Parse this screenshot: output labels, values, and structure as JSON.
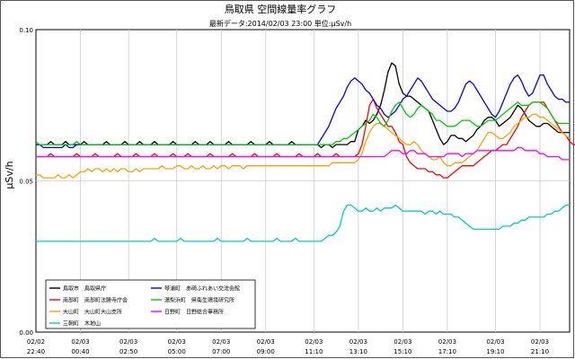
{
  "header": {
    "title": "鳥取県 空間線量率グラフ",
    "subtitle": "最新データ:2014/02/03 23:00  単位:μSv/h"
  },
  "chart_data": {
    "type": "line",
    "ylabel": "μSv/h",
    "ylim": [
      0.0,
      0.1
    ],
    "yticks": [
      "0.00",
      "0.05",
      "0.10"
    ],
    "grid": true,
    "legend_position": "bottom-left",
    "x_tick_labels": [
      [
        "02/02",
        "22:40"
      ],
      [
        "02/03",
        "00:40"
      ],
      [
        "02/03",
        "02:50"
      ],
      [
        "02/03",
        "05:00"
      ],
      [
        "02/03",
        "07:00"
      ],
      [
        "02/03",
        "09:00"
      ],
      [
        "02/03",
        "11:10"
      ],
      [
        "02/03",
        "13:10"
      ],
      [
        "02/03",
        "15:10"
      ],
      [
        "02/03",
        "17:10"
      ],
      [
        "02/03",
        "19:10"
      ],
      [
        "02/03",
        "21:10"
      ]
    ],
    "x_tick_positions": [
      0,
      12,
      25,
      38,
      50,
      62,
      75,
      87,
      99,
      111,
      124,
      136
    ],
    "x_count": 145,
    "series": [
      {
        "name": "鳥取市　鳥取県庁",
        "color": "#000000",
        "values": [
          0.062,
          0.062,
          0.062,
          0.062,
          0.063,
          0.062,
          0.062,
          0.062,
          0.063,
          0.062,
          0.062,
          0.062,
          0.062,
          0.063,
          0.062,
          0.062,
          0.062,
          0.062,
          0.062,
          0.063,
          0.062,
          0.062,
          0.062,
          0.062,
          0.063,
          0.062,
          0.062,
          0.062,
          0.063,
          0.062,
          0.062,
          0.062,
          0.063,
          0.062,
          0.062,
          0.062,
          0.062,
          0.063,
          0.062,
          0.062,
          0.062,
          0.062,
          0.062,
          0.063,
          0.062,
          0.062,
          0.062,
          0.063,
          0.062,
          0.062,
          0.062,
          0.062,
          0.063,
          0.062,
          0.062,
          0.062,
          0.062,
          0.062,
          0.063,
          0.062,
          0.062,
          0.062,
          0.062,
          0.063,
          0.062,
          0.062,
          0.062,
          0.062,
          0.062,
          0.063,
          0.062,
          0.062,
          0.062,
          0.062,
          0.062,
          0.062,
          0.062,
          0.061,
          0.062,
          0.062,
          0.061,
          0.062,
          0.062,
          0.062,
          0.062,
          0.063,
          0.063,
          0.067,
          0.068,
          0.07,
          0.069,
          0.07,
          0.072,
          0.075,
          0.08,
          0.086,
          0.089,
          0.088,
          0.082,
          0.079,
          0.078,
          0.078,
          0.077,
          0.076,
          0.075,
          0.074,
          0.073,
          0.07,
          0.067,
          0.064,
          0.062,
          0.063,
          0.065,
          0.065,
          0.064,
          0.064,
          0.063,
          0.064,
          0.065,
          0.067,
          0.068,
          0.07,
          0.071,
          0.071,
          0.07,
          0.068,
          0.069,
          0.07,
          0.071,
          0.073,
          0.075,
          0.074,
          0.072,
          0.07,
          0.069,
          0.068,
          0.068,
          0.069,
          0.069,
          0.068,
          0.067,
          0.066,
          0.066,
          0.066,
          0.066
        ]
      },
      {
        "name": "南部町　南部町法勝寺庁舎",
        "color": "#ff0000",
        "values": [
          0.058,
          0.058,
          0.058,
          0.058,
          0.059,
          0.058,
          0.058,
          0.058,
          0.058,
          0.058,
          0.058,
          0.059,
          0.058,
          0.058,
          0.058,
          0.058,
          0.059,
          0.058,
          0.058,
          0.058,
          0.058,
          0.058,
          0.059,
          0.058,
          0.058,
          0.058,
          0.058,
          0.059,
          0.058,
          0.058,
          0.058,
          0.058,
          0.059,
          0.058,
          0.058,
          0.058,
          0.058,
          0.059,
          0.058,
          0.058,
          0.058,
          0.059,
          0.058,
          0.058,
          0.058,
          0.058,
          0.058,
          0.059,
          0.058,
          0.058,
          0.058,
          0.058,
          0.058,
          0.059,
          0.058,
          0.058,
          0.058,
          0.058,
          0.058,
          0.059,
          0.058,
          0.058,
          0.058,
          0.058,
          0.058,
          0.059,
          0.058,
          0.058,
          0.058,
          0.058,
          0.058,
          0.059,
          0.058,
          0.058,
          0.058,
          0.058,
          0.059,
          0.058,
          0.058,
          0.058,
          0.058,
          0.059,
          0.058,
          0.058,
          0.058,
          0.058,
          0.058,
          0.059,
          0.062,
          0.068,
          0.075,
          0.077,
          0.074,
          0.072,
          0.07,
          0.068,
          0.068,
          0.066,
          0.063,
          0.062,
          0.058,
          0.056,
          0.055,
          0.054,
          0.054,
          0.054,
          0.053,
          0.053,
          0.052,
          0.052,
          0.051,
          0.051,
          0.052,
          0.053,
          0.054,
          0.055,
          0.055,
          0.055,
          0.055,
          0.056,
          0.057,
          0.058,
          0.059,
          0.06,
          0.06,
          0.061,
          0.062,
          0.062,
          0.064,
          0.066,
          0.068,
          0.071,
          0.073,
          0.075,
          0.076,
          0.076,
          0.076,
          0.076,
          0.074,
          0.072,
          0.07,
          0.068,
          0.066,
          0.065,
          0.063,
          0.062,
          0.062
        ]
      },
      {
        "name": "大山町　大山町大山支所",
        "color": "#ffa000",
        "values": [
          0.052,
          0.052,
          0.051,
          0.051,
          0.051,
          0.051,
          0.052,
          0.051,
          0.051,
          0.052,
          0.051,
          0.052,
          0.053,
          0.053,
          0.054,
          0.053,
          0.054,
          0.054,
          0.053,
          0.054,
          0.053,
          0.054,
          0.053,
          0.054,
          0.054,
          0.053,
          0.053,
          0.054,
          0.053,
          0.054,
          0.054,
          0.054,
          0.054,
          0.054,
          0.055,
          0.054,
          0.054,
          0.054,
          0.055,
          0.055,
          0.054,
          0.054,
          0.055,
          0.054,
          0.054,
          0.055,
          0.054,
          0.054,
          0.055,
          0.054,
          0.055,
          0.055,
          0.054,
          0.055,
          0.055,
          0.055,
          0.054,
          0.055,
          0.055,
          0.055,
          0.055,
          0.055,
          0.055,
          0.055,
          0.055,
          0.055,
          0.055,
          0.055,
          0.055,
          0.055,
          0.055,
          0.055,
          0.055,
          0.055,
          0.055,
          0.055,
          0.055,
          0.055,
          0.055,
          0.055,
          0.056,
          0.056,
          0.056,
          0.056,
          0.056,
          0.056,
          0.056,
          0.057,
          0.059,
          0.063,
          0.066,
          0.068,
          0.069,
          0.069,
          0.068,
          0.067,
          0.066,
          0.065,
          0.064,
          0.063,
          0.062,
          0.062,
          0.063,
          0.062,
          0.06,
          0.059,
          0.058,
          0.057,
          0.057,
          0.058,
          0.056,
          0.055,
          0.055,
          0.056,
          0.056,
          0.056,
          0.057,
          0.058,
          0.059,
          0.06,
          0.062,
          0.064,
          0.066,
          0.066,
          0.065,
          0.064,
          0.064,
          0.065,
          0.066,
          0.068,
          0.069,
          0.07,
          0.071,
          0.071,
          0.072,
          0.072,
          0.071,
          0.071,
          0.07,
          0.069,
          0.068,
          0.067,
          0.066,
          0.065,
          0.064
        ]
      },
      {
        "name": "三朝町　木地山",
        "color": "#00cccc",
        "values": [
          0.03,
          0.03,
          0.03,
          0.03,
          0.03,
          0.03,
          0.03,
          0.03,
          0.03,
          0.03,
          0.03,
          0.03,
          0.03,
          0.03,
          0.03,
          0.03,
          0.03,
          0.03,
          0.03,
          0.03,
          0.03,
          0.03,
          0.03,
          0.03,
          0.03,
          0.03,
          0.03,
          0.03,
          0.03,
          0.03,
          0.03,
          0.03,
          0.031,
          0.03,
          0.03,
          0.03,
          0.03,
          0.03,
          0.03,
          0.031,
          0.03,
          0.03,
          0.03,
          0.03,
          0.03,
          0.03,
          0.03,
          0.03,
          0.03,
          0.031,
          0.03,
          0.03,
          0.03,
          0.03,
          0.03,
          0.03,
          0.03,
          0.031,
          0.03,
          0.03,
          0.03,
          0.03,
          0.03,
          0.03,
          0.03,
          0.031,
          0.03,
          0.03,
          0.03,
          0.03,
          0.031,
          0.03,
          0.03,
          0.03,
          0.03,
          0.03,
          0.03,
          0.03,
          0.031,
          0.032,
          0.032,
          0.033,
          0.035,
          0.04,
          0.042,
          0.042,
          0.041,
          0.04,
          0.04,
          0.041,
          0.04,
          0.04,
          0.041,
          0.04,
          0.041,
          0.041,
          0.041,
          0.042,
          0.041,
          0.04,
          0.04,
          0.04,
          0.04,
          0.04,
          0.04,
          0.039,
          0.04,
          0.04,
          0.039,
          0.04,
          0.039,
          0.039,
          0.039,
          0.038,
          0.038,
          0.037,
          0.036,
          0.035,
          0.034,
          0.034,
          0.034,
          0.034,
          0.034,
          0.034,
          0.034,
          0.034,
          0.035,
          0.035,
          0.035,
          0.036,
          0.036,
          0.037,
          0.037,
          0.038,
          0.038,
          0.038,
          0.038,
          0.038,
          0.039,
          0.039,
          0.04,
          0.04,
          0.041,
          0.042,
          0.042
        ]
      },
      {
        "name": "琴浦町　赤碕ふれあい交流会館",
        "color": "#0000ff",
        "values": [
          0.062,
          0.062,
          0.061,
          0.061,
          0.061,
          0.061,
          0.061,
          0.061,
          0.062,
          0.061,
          0.061,
          0.062,
          0.062,
          0.062,
          0.062,
          0.062,
          0.062,
          0.062,
          0.062,
          0.062,
          0.062,
          0.062,
          0.062,
          0.062,
          0.062,
          0.062,
          0.062,
          0.062,
          0.062,
          0.062,
          0.062,
          0.062,
          0.062,
          0.062,
          0.062,
          0.062,
          0.062,
          0.062,
          0.062,
          0.062,
          0.062,
          0.062,
          0.062,
          0.062,
          0.062,
          0.062,
          0.062,
          0.062,
          0.062,
          0.062,
          0.062,
          0.062,
          0.062,
          0.062,
          0.062,
          0.062,
          0.062,
          0.062,
          0.062,
          0.062,
          0.062,
          0.062,
          0.062,
          0.062,
          0.062,
          0.062,
          0.062,
          0.062,
          0.062,
          0.062,
          0.062,
          0.062,
          0.062,
          0.062,
          0.062,
          0.062,
          0.062,
          0.064,
          0.066,
          0.068,
          0.071,
          0.074,
          0.076,
          0.078,
          0.081,
          0.083,
          0.084,
          0.083,
          0.082,
          0.08,
          0.079,
          0.077,
          0.075,
          0.074,
          0.072,
          0.071,
          0.072,
          0.073,
          0.075,
          0.077,
          0.078,
          0.08,
          0.082,
          0.084,
          0.083,
          0.081,
          0.079,
          0.077,
          0.076,
          0.075,
          0.074,
          0.073,
          0.073,
          0.074,
          0.076,
          0.079,
          0.082,
          0.083,
          0.082,
          0.08,
          0.078,
          0.076,
          0.074,
          0.072,
          0.071,
          0.073,
          0.076,
          0.079,
          0.082,
          0.084,
          0.085,
          0.083,
          0.08,
          0.078,
          0.079,
          0.082,
          0.085,
          0.085,
          0.082,
          0.08,
          0.078,
          0.077,
          0.077,
          0.076,
          0.076
        ]
      },
      {
        "name": "湯梨浜町　県衛生環境研究所",
        "color": "#00cc00",
        "values": [
          0.063,
          0.062,
          0.062,
          0.062,
          0.062,
          0.062,
          0.062,
          0.062,
          0.062,
          0.062,
          0.062,
          0.063,
          0.062,
          0.062,
          0.062,
          0.062,
          0.062,
          0.062,
          0.062,
          0.062,
          0.062,
          0.062,
          0.062,
          0.062,
          0.062,
          0.062,
          0.062,
          0.062,
          0.062,
          0.062,
          0.062,
          0.062,
          0.062,
          0.062,
          0.062,
          0.062,
          0.062,
          0.062,
          0.062,
          0.062,
          0.062,
          0.062,
          0.062,
          0.062,
          0.062,
          0.062,
          0.062,
          0.062,
          0.062,
          0.062,
          0.062,
          0.062,
          0.062,
          0.062,
          0.062,
          0.062,
          0.062,
          0.062,
          0.062,
          0.062,
          0.062,
          0.062,
          0.062,
          0.062,
          0.062,
          0.062,
          0.062,
          0.062,
          0.062,
          0.062,
          0.062,
          0.062,
          0.062,
          0.062,
          0.062,
          0.062,
          0.062,
          0.062,
          0.062,
          0.062,
          0.062,
          0.063,
          0.063,
          0.064,
          0.064,
          0.065,
          0.066,
          0.067,
          0.068,
          0.069,
          0.07,
          0.072,
          0.071,
          0.069,
          0.068,
          0.07,
          0.073,
          0.075,
          0.076,
          0.074,
          0.072,
          0.071,
          0.072,
          0.074,
          0.075,
          0.074,
          0.073,
          0.072,
          0.07,
          0.07,
          0.069,
          0.068,
          0.068,
          0.068,
          0.069,
          0.07,
          0.07,
          0.07,
          0.069,
          0.068,
          0.068,
          0.069,
          0.07,
          0.07,
          0.07,
          0.071,
          0.072,
          0.073,
          0.074,
          0.075,
          0.076,
          0.075,
          0.075,
          0.075,
          0.076,
          0.076,
          0.076,
          0.075,
          0.074,
          0.072,
          0.07,
          0.069,
          0.069,
          0.069,
          0.069
        ]
      },
      {
        "name": "日野町　日野総合事務所",
        "color": "#ff00ff",
        "values": [
          0.058,
          0.058,
          0.058,
          0.058,
          0.058,
          0.058,
          0.058,
          0.058,
          0.058,
          0.058,
          0.058,
          0.058,
          0.058,
          0.058,
          0.058,
          0.058,
          0.058,
          0.058,
          0.058,
          0.058,
          0.058,
          0.058,
          0.058,
          0.058,
          0.058,
          0.058,
          0.058,
          0.058,
          0.058,
          0.058,
          0.058,
          0.058,
          0.058,
          0.058,
          0.058,
          0.058,
          0.058,
          0.058,
          0.058,
          0.058,
          0.058,
          0.058,
          0.058,
          0.058,
          0.058,
          0.058,
          0.058,
          0.058,
          0.058,
          0.058,
          0.058,
          0.058,
          0.058,
          0.058,
          0.058,
          0.058,
          0.058,
          0.058,
          0.058,
          0.058,
          0.058,
          0.058,
          0.058,
          0.058,
          0.058,
          0.058,
          0.058,
          0.058,
          0.058,
          0.058,
          0.058,
          0.058,
          0.058,
          0.058,
          0.058,
          0.058,
          0.058,
          0.058,
          0.058,
          0.058,
          0.058,
          0.058,
          0.058,
          0.058,
          0.058,
          0.058,
          0.058,
          0.058,
          0.058,
          0.058,
          0.058,
          0.058,
          0.058,
          0.058,
          0.058,
          0.059,
          0.06,
          0.06,
          0.06,
          0.059,
          0.059,
          0.06,
          0.06,
          0.059,
          0.059,
          0.059,
          0.058,
          0.058,
          0.058,
          0.058,
          0.058,
          0.059,
          0.059,
          0.059,
          0.059,
          0.058,
          0.059,
          0.059,
          0.059,
          0.06,
          0.06,
          0.06,
          0.06,
          0.06,
          0.06,
          0.06,
          0.06,
          0.06,
          0.06,
          0.06,
          0.061,
          0.061,
          0.06,
          0.06,
          0.06,
          0.06,
          0.059,
          0.059,
          0.058,
          0.058,
          0.058,
          0.058,
          0.057,
          0.057,
          0.057
        ]
      }
    ]
  }
}
